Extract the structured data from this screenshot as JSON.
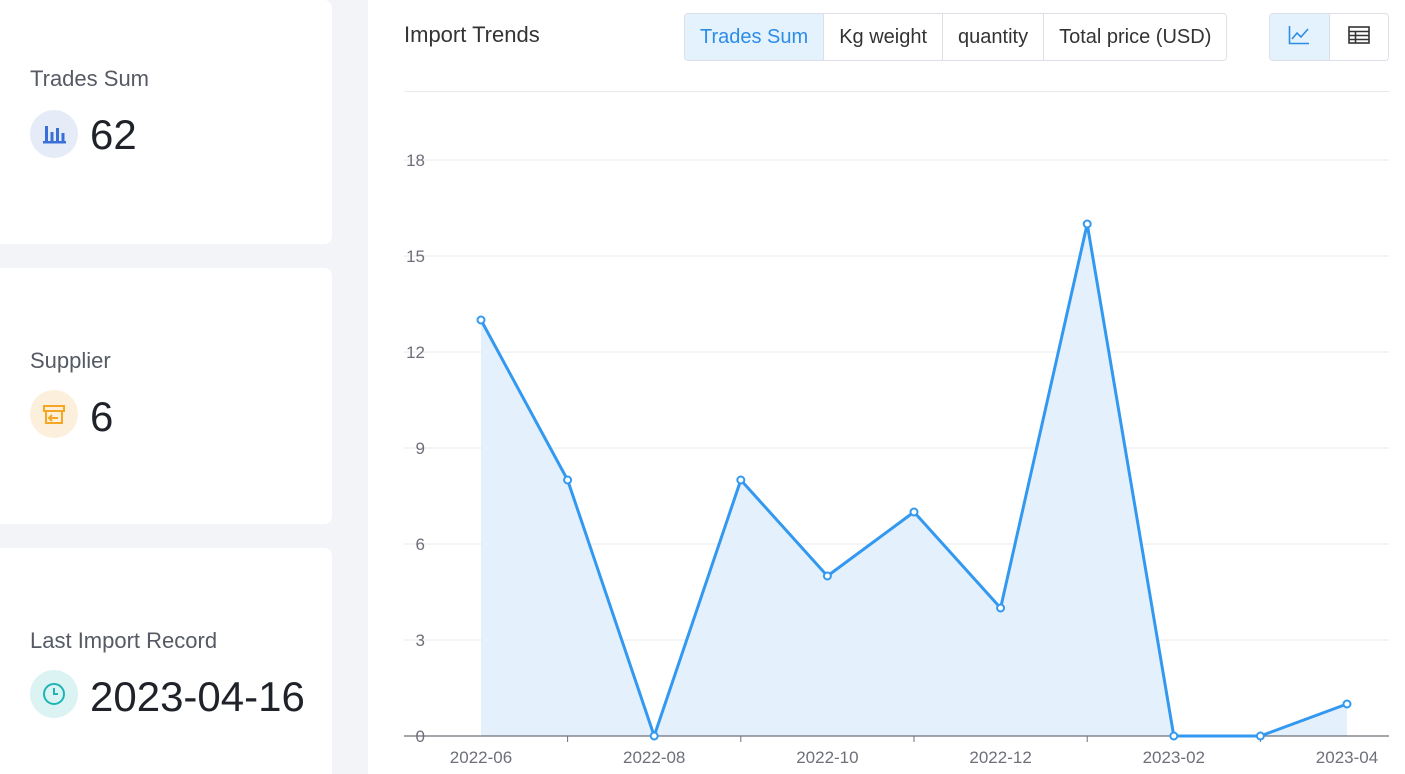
{
  "stats": [
    {
      "label": "Trades Sum",
      "value": "62",
      "icon": "bar-chart-icon",
      "accent": "#3a6fd8"
    },
    {
      "label": "Supplier",
      "value": "6",
      "icon": "storefront-icon",
      "accent": "#f5a623"
    },
    {
      "label": "Last Import Record",
      "value": "2023-04-16",
      "icon": "clock-icon",
      "accent": "#1fb5b5"
    }
  ],
  "panel": {
    "title": "Import Trends",
    "tabs": [
      {
        "label": "Trades Sum",
        "active": true
      },
      {
        "label": "Kg weight",
        "active": false
      },
      {
        "label": "quantity",
        "active": false
      },
      {
        "label": "Total price (USD)",
        "active": false
      }
    ],
    "view_modes": [
      {
        "icon": "line-chart-icon",
        "active": true
      },
      {
        "icon": "table-icon",
        "active": false
      }
    ]
  },
  "chart_data": {
    "type": "area",
    "x": [
      "2022-06",
      "2022-07",
      "2022-08",
      "2022-09",
      "2022-10",
      "2022-11",
      "2022-12",
      "2023-01",
      "2023-02",
      "2023-03",
      "2023-04"
    ],
    "x_tick_labels": [
      "2022-06",
      "2022-08",
      "2022-10",
      "2022-12",
      "2023-02",
      "2023-04"
    ],
    "series": [
      {
        "values": [
          13,
          8,
          0,
          8,
          5,
          7,
          4,
          16,
          0,
          0,
          1
        ],
        "color": "#3399f0",
        "fill": "#e4f1fc"
      }
    ],
    "yticks": [
      0,
      3,
      6,
      9,
      12,
      15,
      18
    ],
    "ylim": [
      0,
      18
    ],
    "grid": true,
    "legend": "none"
  }
}
